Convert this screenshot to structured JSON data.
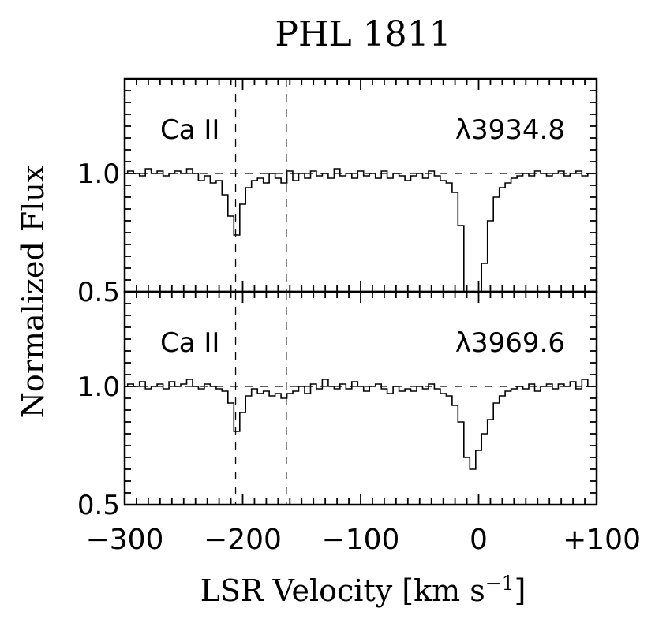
{
  "chart_data": {
    "type": "line",
    "title": "PHL  1811",
    "xlabel": "LSR  Velocity  [km  s",
    "xlabel_sup": "−1",
    "xlabel_end": "]",
    "ylabel": "Normalized  Flux",
    "xlim": [
      -300,
      100
    ],
    "ylim": [
      0.5,
      1.4
    ],
    "x_ticks": [
      -300,
      -200,
      -100,
      0,
      100
    ],
    "x_tick_labels": [
      "−300",
      "−200",
      "−100",
      "0",
      "+100"
    ],
    "y_tick_labels": [
      "1.0",
      "0.5"
    ],
    "reference_lines": {
      "continuum": 1.0,
      "velocities": [
        -206,
        -163
      ]
    },
    "panels": [
      {
        "ion": "Ca  II",
        "wavelength": "λ3934.8",
        "series": [
          {
            "name": "Ca II λ3934.8",
            "x": [
              -300,
              -295,
              -290,
              -285,
              -280,
              -275,
              -270,
              -265,
              -260,
              -255,
              -250,
              -245,
              -240,
              -235,
              -230,
              -225,
              -220,
              -215,
              -210,
              -205,
              -200,
              -195,
              -190,
              -185,
              -180,
              -175,
              -170,
              -165,
              -160,
              -155,
              -150,
              -145,
              -140,
              -135,
              -130,
              -125,
              -120,
              -115,
              -110,
              -105,
              -100,
              -95,
              -90,
              -85,
              -80,
              -75,
              -70,
              -65,
              -60,
              -55,
              -50,
              -45,
              -40,
              -35,
              -30,
              -25,
              -20,
              -15,
              -10,
              -5,
              0,
              5,
              10,
              15,
              20,
              25,
              30,
              35,
              40,
              45,
              50,
              55,
              60,
              65,
              70,
              75,
              80,
              85,
              90,
              95,
              100
            ],
            "y": [
              1.0,
              1.01,
              1.0,
              0.99,
              1.02,
              1.0,
              1.01,
              0.99,
              1.0,
              1.01,
              1.0,
              1.02,
              1.0,
              0.97,
              0.99,
              0.96,
              0.97,
              0.91,
              0.82,
              0.74,
              0.87,
              0.94,
              0.97,
              0.98,
              0.96,
              1.0,
              0.98,
              0.96,
              1.01,
              0.97,
              1.0,
              0.98,
              1.01,
              0.99,
              1.0,
              0.98,
              1.02,
              0.99,
              1.0,
              0.98,
              1.01,
              0.99,
              1.0,
              0.98,
              1.01,
              0.98,
              1.0,
              0.99,
              0.97,
              0.99,
              1.0,
              0.98,
              1.01,
              0.99,
              0.97,
              0.96,
              0.92,
              0.78,
              0.5,
              0.47,
              0.5,
              0.62,
              0.8,
              0.9,
              0.94,
              0.96,
              0.98,
              0.99,
              1.0,
              0.99,
              1.01,
              1.0,
              0.99,
              1.0,
              1.01,
              0.99,
              1.0,
              1.01,
              0.99,
              1.0,
              1.0
            ]
          }
        ]
      },
      {
        "ion": "Ca  II",
        "wavelength": "λ3969.6",
        "series": [
          {
            "name": "Ca II λ3969.6",
            "x": [
              -300,
              -295,
              -290,
              -285,
              -280,
              -275,
              -270,
              -265,
              -260,
              -255,
              -250,
              -245,
              -240,
              -235,
              -230,
              -225,
              -220,
              -215,
              -210,
              -205,
              -200,
              -195,
              -190,
              -185,
              -180,
              -175,
              -170,
              -165,
              -160,
              -155,
              -150,
              -145,
              -140,
              -135,
              -130,
              -125,
              -120,
              -115,
              -110,
              -105,
              -100,
              -95,
              -90,
              -85,
              -80,
              -75,
              -70,
              -65,
              -60,
              -55,
              -50,
              -45,
              -40,
              -35,
              -30,
              -25,
              -20,
              -15,
              -10,
              -5,
              0,
              5,
              10,
              15,
              20,
              25,
              30,
              35,
              40,
              45,
              50,
              55,
              60,
              65,
              70,
              75,
              80,
              85,
              90,
              95,
              100
            ],
            "y": [
              1.0,
              1.01,
              1.0,
              1.02,
              0.99,
              1.0,
              1.01,
              0.99,
              1.02,
              1.0,
              1.01,
              1.03,
              1.0,
              0.99,
              1.01,
              1.0,
              0.99,
              0.98,
              0.93,
              0.81,
              0.89,
              0.96,
              0.99,
              0.97,
              0.98,
              0.96,
              0.97,
              0.95,
              0.97,
              0.98,
              1.0,
              0.97,
              1.01,
              0.99,
              1.03,
              1.0,
              0.99,
              1.01,
              0.99,
              1.02,
              1.0,
              0.98,
              1.0,
              1.01,
              0.99,
              0.97,
              1.0,
              0.98,
              0.99,
              0.98,
              1.0,
              0.99,
              1.01,
              0.99,
              0.97,
              0.96,
              0.92,
              0.85,
              0.7,
              0.65,
              0.73,
              0.8,
              0.86,
              0.93,
              0.96,
              0.98,
              0.99,
              1.0,
              0.99,
              1.01,
              0.98,
              1.0,
              1.01,
              0.99,
              1.01,
              1.0,
              1.02,
              0.99,
              1.03,
              1.0,
              1.0
            ]
          }
        ]
      }
    ]
  }
}
